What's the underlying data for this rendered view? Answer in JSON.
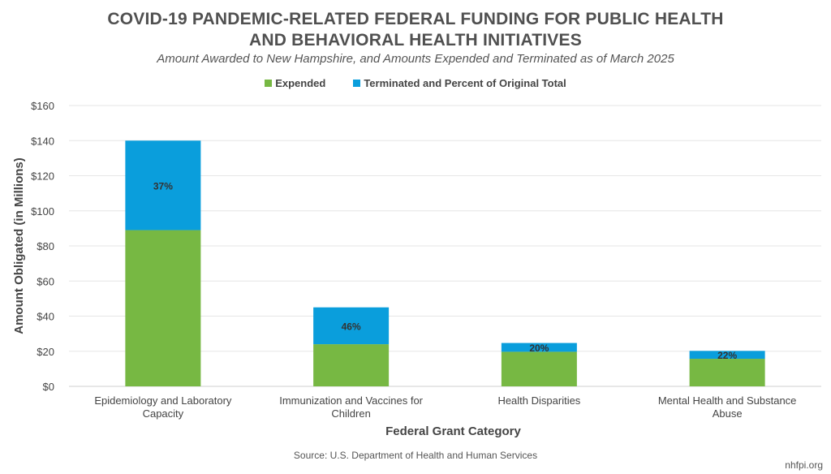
{
  "header": {
    "title_line1": "COVID-19 PANDEMIC-RELATED FEDERAL FUNDING FOR PUBLIC HEALTH",
    "title_line2": "AND BEHAVIORAL HEALTH INITIATIVES",
    "subtitle": "Amount Awarded to New Hampshire, and Amounts Expended and Terminated as of March 2025"
  },
  "legend": {
    "expended": "Expended",
    "terminated": "Terminated and Percent of Original Total"
  },
  "colors": {
    "expended": "#77b843",
    "terminated": "#0a9edc",
    "grid": "#e6e6e6"
  },
  "chart_data": {
    "type": "bar",
    "stacked": true,
    "categories": [
      [
        "Epidemiology and Laboratory",
        "Capacity"
      ],
      [
        "Immunization and Vaccines for",
        "Children"
      ],
      [
        "Health Disparities"
      ],
      [
        "Mental Health and Substance",
        "Abuse"
      ]
    ],
    "series": [
      {
        "name": "Expended",
        "values": [
          89,
          24,
          19.7,
          15.7
        ]
      },
      {
        "name": "Terminated and Percent of Original Total",
        "values": [
          51,
          21,
          5,
          4.5
        ]
      }
    ],
    "data_labels": [
      "37%",
      "46%",
      "20%",
      "22%"
    ],
    "xlabel": "Federal Grant Category",
    "ylabel": "Amount Obligated (in Millions)",
    "ylim": [
      0,
      160
    ],
    "yticks": [
      0,
      20,
      40,
      60,
      80,
      100,
      120,
      140,
      160
    ],
    "ytick_labels": [
      "$0",
      "$20",
      "$40",
      "$60",
      "$80",
      "$100",
      "$120",
      "$140",
      "$160"
    ],
    "grid": true,
    "legend_position": "top"
  },
  "footer": {
    "source": "Source: U.S. Department of Health and Human Services",
    "brand": "nhfpi.org"
  }
}
